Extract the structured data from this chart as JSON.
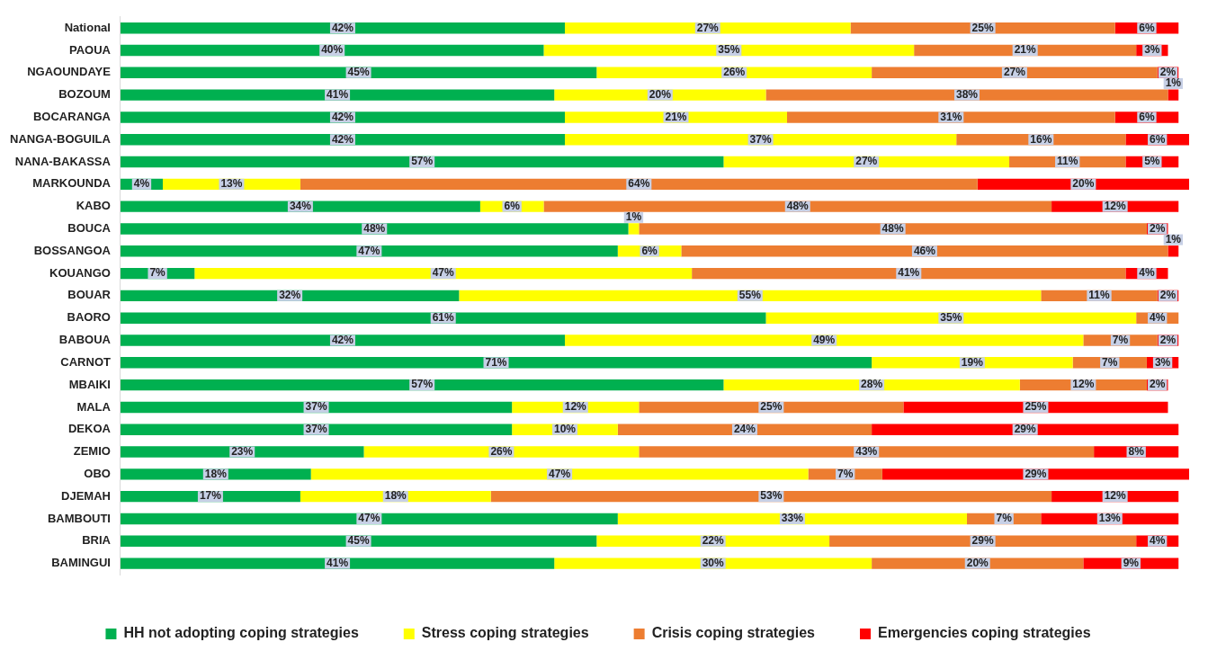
{
  "chart_data": {
    "type": "bar",
    "orientation": "horizontal",
    "stacked": true,
    "grid": false,
    "legend": "bottom",
    "tick_labels": "y",
    "categories": [
      "National",
      "PAOUA",
      "NGAOUNDAYE",
      "BOZOUM",
      "BOCARANGA",
      "NANGA-BOGUILA",
      "NANA-BAKASSA",
      "MARKOUNDA",
      "KABO",
      "BOUCA",
      "BOSSANGOA",
      "KOUANGO",
      "BOUAR",
      "BAORO",
      "BABOUA",
      "CARNOT",
      "MBAIKI",
      "MALA",
      "DEKOA",
      "ZEMIO",
      "OBO",
      "DJEMAH",
      "BAMBOUTI",
      "BRIA",
      "BAMINGUI"
    ],
    "series": [
      {
        "name": "HH not adopting coping strategies",
        "color": "#00b050",
        "values": [
          42,
          40,
          45,
          41,
          42,
          42,
          57,
          4,
          34,
          48,
          47,
          7,
          32,
          61,
          42,
          71,
          57,
          37,
          37,
          23,
          18,
          17,
          47,
          45,
          41
        ],
        "value_labels": [
          "42%",
          "40%",
          "45%",
          "41%",
          "42%",
          "42%",
          "57%",
          "4%",
          "34%",
          "48%",
          "47%",
          "7%",
          "32%",
          "61%",
          "42%",
          "71%",
          "57%",
          "37%",
          "37%",
          "23%",
          "18%",
          "17%",
          "47%",
          "45%",
          "41%"
        ]
      },
      {
        "name": "Stress coping strategies",
        "color": "#ffff00",
        "values": [
          27,
          35,
          26,
          20,
          21,
          37,
          27,
          13,
          6,
          1,
          6,
          47,
          55,
          35,
          49,
          19,
          28,
          12,
          10,
          26,
          47,
          18,
          33,
          22,
          30
        ],
        "value_labels": [
          "27%",
          "35%",
          "26%",
          "20%",
          "21%",
          "37%",
          "27%",
          "13%",
          "6%",
          "1%",
          "6%",
          "47%",
          "55%",
          "35%",
          "49%",
          "19%",
          "28%",
          "12%",
          "10%",
          "26%",
          "47%",
          "18%",
          "33%",
          "22%",
          "30%"
        ]
      },
      {
        "name": "Crisis coping strategies",
        "color": "#ed7d31",
        "values": [
          25,
          21,
          27,
          38,
          31,
          16,
          11,
          64,
          48,
          48,
          46,
          41,
          11,
          4,
          7,
          7,
          12,
          25,
          24,
          43,
          7,
          53,
          7,
          29,
          20
        ],
        "value_labels": [
          "25%",
          "21%",
          "27%",
          "38%",
          "31%",
          "16%",
          "11%",
          "64%",
          "48%",
          "48%",
          "46%",
          "41%",
          "11%",
          "4%",
          "7%",
          "7%",
          "12%",
          "25%",
          "24%",
          "43%",
          "7%",
          "53%",
          "7%",
          "29%",
          "20%"
        ]
      },
      {
        "name": "Emergencies coping strategies",
        "color": "#ff0000",
        "values": [
          6,
          3,
          2,
          1,
          6,
          6,
          5,
          20,
          12,
          2,
          1,
          4,
          2,
          null,
          2,
          3,
          2,
          25,
          29,
          8,
          29,
          12,
          13,
          4,
          9
        ],
        "value_labels": [
          "6%",
          "3%",
          "2%",
          "1%",
          "6%",
          "6%",
          "5%",
          "20%",
          "12%",
          "2%",
          "1%",
          "4%",
          "2%",
          null,
          "2%",
          "3%",
          "2%",
          "25%",
          "29%",
          "8%",
          "29%",
          "12%",
          "13%",
          "4%",
          "9%"
        ]
      }
    ]
  }
}
